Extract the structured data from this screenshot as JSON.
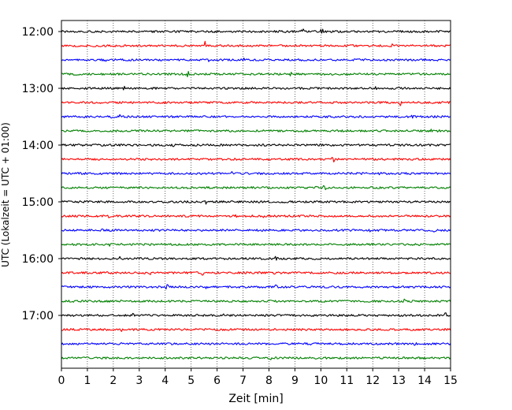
{
  "chart_data": {
    "type": "line",
    "title": "",
    "xlabel": "Zeit  [min]",
    "ylabel": "UTC (Lokalzeit = UTC + 01:00)",
    "xlim": [
      0,
      15
    ],
    "x_ticks": [
      0,
      1,
      2,
      3,
      4,
      5,
      6,
      7,
      8,
      9,
      10,
      11,
      12,
      13,
      14,
      15
    ],
    "x_tick_labels": [
      "0",
      "1",
      "2",
      "3",
      "4",
      "5",
      "6",
      "7",
      "8",
      "9",
      "10",
      "11",
      "12",
      "13",
      "14",
      "15"
    ],
    "y_tick_labels": [
      "12:00",
      "13:00",
      "14:00",
      "15:00",
      "16:00",
      "17:00"
    ],
    "grid": "vertical-dotted",
    "legend": "none",
    "trace_interval_minutes": 15,
    "color_cycle": [
      "#000000",
      "#ff0000",
      "#0000ff",
      "#008000"
    ],
    "series": [
      {
        "start": "12:00",
        "color": "#000000"
      },
      {
        "start": "12:15",
        "color": "#ff0000"
      },
      {
        "start": "12:30",
        "color": "#0000ff"
      },
      {
        "start": "12:45",
        "color": "#008000"
      },
      {
        "start": "13:00",
        "color": "#000000"
      },
      {
        "start": "13:15",
        "color": "#ff0000"
      },
      {
        "start": "13:30",
        "color": "#0000ff"
      },
      {
        "start": "13:45",
        "color": "#008000"
      },
      {
        "start": "14:00",
        "color": "#000000"
      },
      {
        "start": "14:15",
        "color": "#ff0000"
      },
      {
        "start": "14:30",
        "color": "#0000ff"
      },
      {
        "start": "14:45",
        "color": "#008000"
      },
      {
        "start": "15:00",
        "color": "#000000"
      },
      {
        "start": "15:15",
        "color": "#ff0000"
      },
      {
        "start": "15:30",
        "color": "#0000ff"
      },
      {
        "start": "15:45",
        "color": "#008000"
      },
      {
        "start": "16:00",
        "color": "#000000"
      },
      {
        "start": "16:15",
        "color": "#ff0000"
      },
      {
        "start": "16:30",
        "color": "#0000ff"
      },
      {
        "start": "16:45",
        "color": "#008000"
      },
      {
        "start": "17:00",
        "color": "#000000"
      },
      {
        "start": "17:15",
        "color": "#ff0000"
      },
      {
        "start": "17:30",
        "color": "#0000ff"
      },
      {
        "start": "17:45",
        "color": "#008000"
      }
    ]
  }
}
